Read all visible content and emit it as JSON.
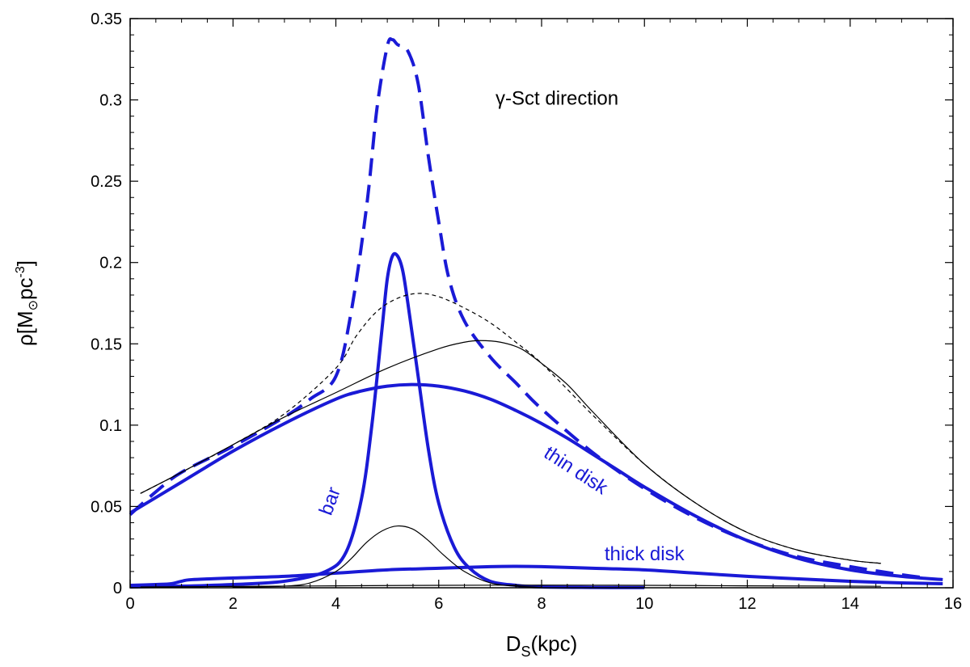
{
  "chart_data": {
    "type": "line",
    "title": "γ-Sct direction",
    "xlabel": {
      "main": "D",
      "sub": "S",
      "rest": "(kpc)"
    },
    "ylabel": {
      "pre": "ρ[M",
      "sun_sub": "⊙",
      "mid": "pc",
      "exp": "-3",
      "post": "]"
    },
    "xlim": [
      0,
      16
    ],
    "ylim": [
      0,
      0.35
    ],
    "x_ticks": [
      0,
      2,
      4,
      6,
      8,
      10,
      12,
      14,
      16
    ],
    "x_tick_labels": [
      "0",
      "2",
      "4",
      "6",
      "8",
      "10",
      "12",
      "14",
      "16"
    ],
    "y_ticks": [
      0,
      0.05,
      0.1,
      0.15,
      0.2,
      0.25,
      0.3,
      0.35
    ],
    "y_tick_labels": [
      "0",
      "0.05",
      "0.1",
      "0.15",
      "0.2",
      "0.25",
      "0.3",
      "0.35"
    ],
    "grid": false,
    "colors": {
      "blue": "#1a1ad6",
      "black": "#000000"
    },
    "series": [
      {
        "name": "total (blue dashed)",
        "color": "#1a1ad6",
        "style": "dashed-thick",
        "x": [
          0,
          0.5,
          1,
          2,
          3,
          3.5,
          4,
          4.3,
          4.6,
          4.8,
          5.0,
          5.1,
          5.2,
          5.4,
          5.6,
          5.8,
          6.0,
          6.2,
          6.5,
          7,
          7.5,
          8,
          9,
          10,
          11,
          12,
          13,
          14,
          15,
          15.5
        ],
        "y": [
          0.045,
          0.059,
          0.071,
          0.087,
          0.105,
          0.116,
          0.13,
          0.17,
          0.235,
          0.295,
          0.333,
          0.337,
          0.334,
          0.33,
          0.31,
          0.265,
          0.225,
          0.19,
          0.164,
          0.142,
          0.126,
          0.11,
          0.083,
          0.061,
          0.043,
          0.029,
          0.019,
          0.013,
          0.008,
          0.006
        ]
      },
      {
        "name": "bar",
        "color": "#1a1ad6",
        "style": "solid-thick",
        "x": [
          0,
          1,
          2,
          3,
          3.8,
          4.2,
          4.5,
          4.7,
          4.9,
          5.0,
          5.1,
          5.2,
          5.3,
          5.4,
          5.6,
          5.8,
          6.0,
          6.3,
          6.6,
          7.0,
          7.5,
          8,
          9,
          10
        ],
        "y": [
          0.0005,
          0.001,
          0.002,
          0.004,
          0.01,
          0.022,
          0.055,
          0.1,
          0.16,
          0.19,
          0.204,
          0.204,
          0.195,
          0.175,
          0.13,
          0.085,
          0.052,
          0.025,
          0.012,
          0.004,
          0.0015,
          0.0005,
          0.0002,
          0.0001
        ]
      },
      {
        "name": "thin disk",
        "color": "#1a1ad6",
        "style": "solid-thick",
        "x": [
          0,
          1,
          2,
          3,
          4,
          4.5,
          5,
          5.5,
          6,
          6.5,
          7,
          7.5,
          8,
          8.5,
          9,
          9.5,
          10,
          11,
          12,
          13,
          14,
          15,
          15.8
        ],
        "y": [
          0.046,
          0.065,
          0.084,
          0.101,
          0.116,
          0.121,
          0.124,
          0.125,
          0.124,
          0.121,
          0.116,
          0.109,
          0.101,
          0.092,
          0.082,
          0.072,
          0.062,
          0.044,
          0.029,
          0.018,
          0.011,
          0.007,
          0.005
        ]
      },
      {
        "name": "thick disk",
        "color": "#1a1ad6",
        "style": "solid-thick",
        "x": [
          0,
          0.5,
          0.8,
          1.0,
          1.2,
          2,
          3,
          4,
          5,
          6,
          7,
          7.5,
          8,
          9,
          10,
          11,
          12,
          13,
          14,
          15,
          15.8
        ],
        "y": [
          0.0015,
          0.002,
          0.0025,
          0.004,
          0.005,
          0.006,
          0.007,
          0.009,
          0.011,
          0.012,
          0.013,
          0.0132,
          0.013,
          0.012,
          0.011,
          0.009,
          0.007,
          0.0055,
          0.004,
          0.003,
          0.0025
        ]
      },
      {
        "name": "total (black dashed)",
        "color": "#000000",
        "style": "dashed-thin",
        "x": [
          0.2,
          1,
          2,
          3,
          4,
          4.4,
          4.8,
          5.2,
          5.6,
          6.0,
          6.5,
          7,
          7.5,
          8,
          9,
          10,
          11,
          12,
          13,
          14,
          14.6
        ],
        "y": [
          0.058,
          0.071,
          0.088,
          0.107,
          0.135,
          0.155,
          0.17,
          0.178,
          0.181,
          0.179,
          0.172,
          0.163,
          0.151,
          0.138,
          0.106,
          0.076,
          0.052,
          0.034,
          0.023,
          0.017,
          0.015
        ]
      },
      {
        "name": "thin disk (black)",
        "color": "#000000",
        "style": "solid-thin",
        "x": [
          0.2,
          1,
          2,
          3,
          4,
          5,
          6,
          6.5,
          6.8,
          7.2,
          7.6,
          8,
          8.5,
          9,
          10,
          11,
          12,
          13,
          14,
          14.6
        ],
        "y": [
          0.058,
          0.071,
          0.088,
          0.105,
          0.12,
          0.135,
          0.147,
          0.151,
          0.152,
          0.151,
          0.147,
          0.138,
          0.125,
          0.108,
          0.076,
          0.052,
          0.034,
          0.023,
          0.017,
          0.015
        ]
      },
      {
        "name": "bar (black)",
        "color": "#000000",
        "style": "solid-thin",
        "x": [
          2,
          3,
          3.5,
          4,
          4.3,
          4.6,
          4.9,
          5.2,
          5.5,
          5.8,
          6.1,
          6.5,
          7,
          7.5,
          8
        ],
        "y": [
          0.0003,
          0.001,
          0.003,
          0.01,
          0.018,
          0.028,
          0.035,
          0.038,
          0.036,
          0.029,
          0.02,
          0.01,
          0.003,
          0.001,
          0.0003
        ]
      },
      {
        "name": "thick disk (black)",
        "color": "#000000",
        "style": "solid-thin",
        "x": [
          0.2,
          2,
          4,
          6,
          8,
          10,
          12,
          14,
          14.6
        ],
        "y": [
          0.0005,
          0.0008,
          0.0012,
          0.0015,
          0.0016,
          0.0015,
          0.0012,
          0.001,
          0.0009
        ]
      }
    ],
    "annotations": [
      {
        "text": "γ-Sct direction",
        "x": 8.3,
        "y": 0.297,
        "color": "#000000",
        "rotate": 0
      },
      {
        "text": "bar",
        "x": 4.0,
        "y": 0.052,
        "color": "#1a1ad6",
        "rotate": -70
      },
      {
        "text": "thin disk",
        "x": 8.6,
        "y": 0.069,
        "color": "#1a1ad6",
        "rotate": 33
      },
      {
        "text": "thick disk",
        "x": 10.0,
        "y": 0.017,
        "color": "#1a1ad6",
        "rotate": 0
      }
    ]
  }
}
